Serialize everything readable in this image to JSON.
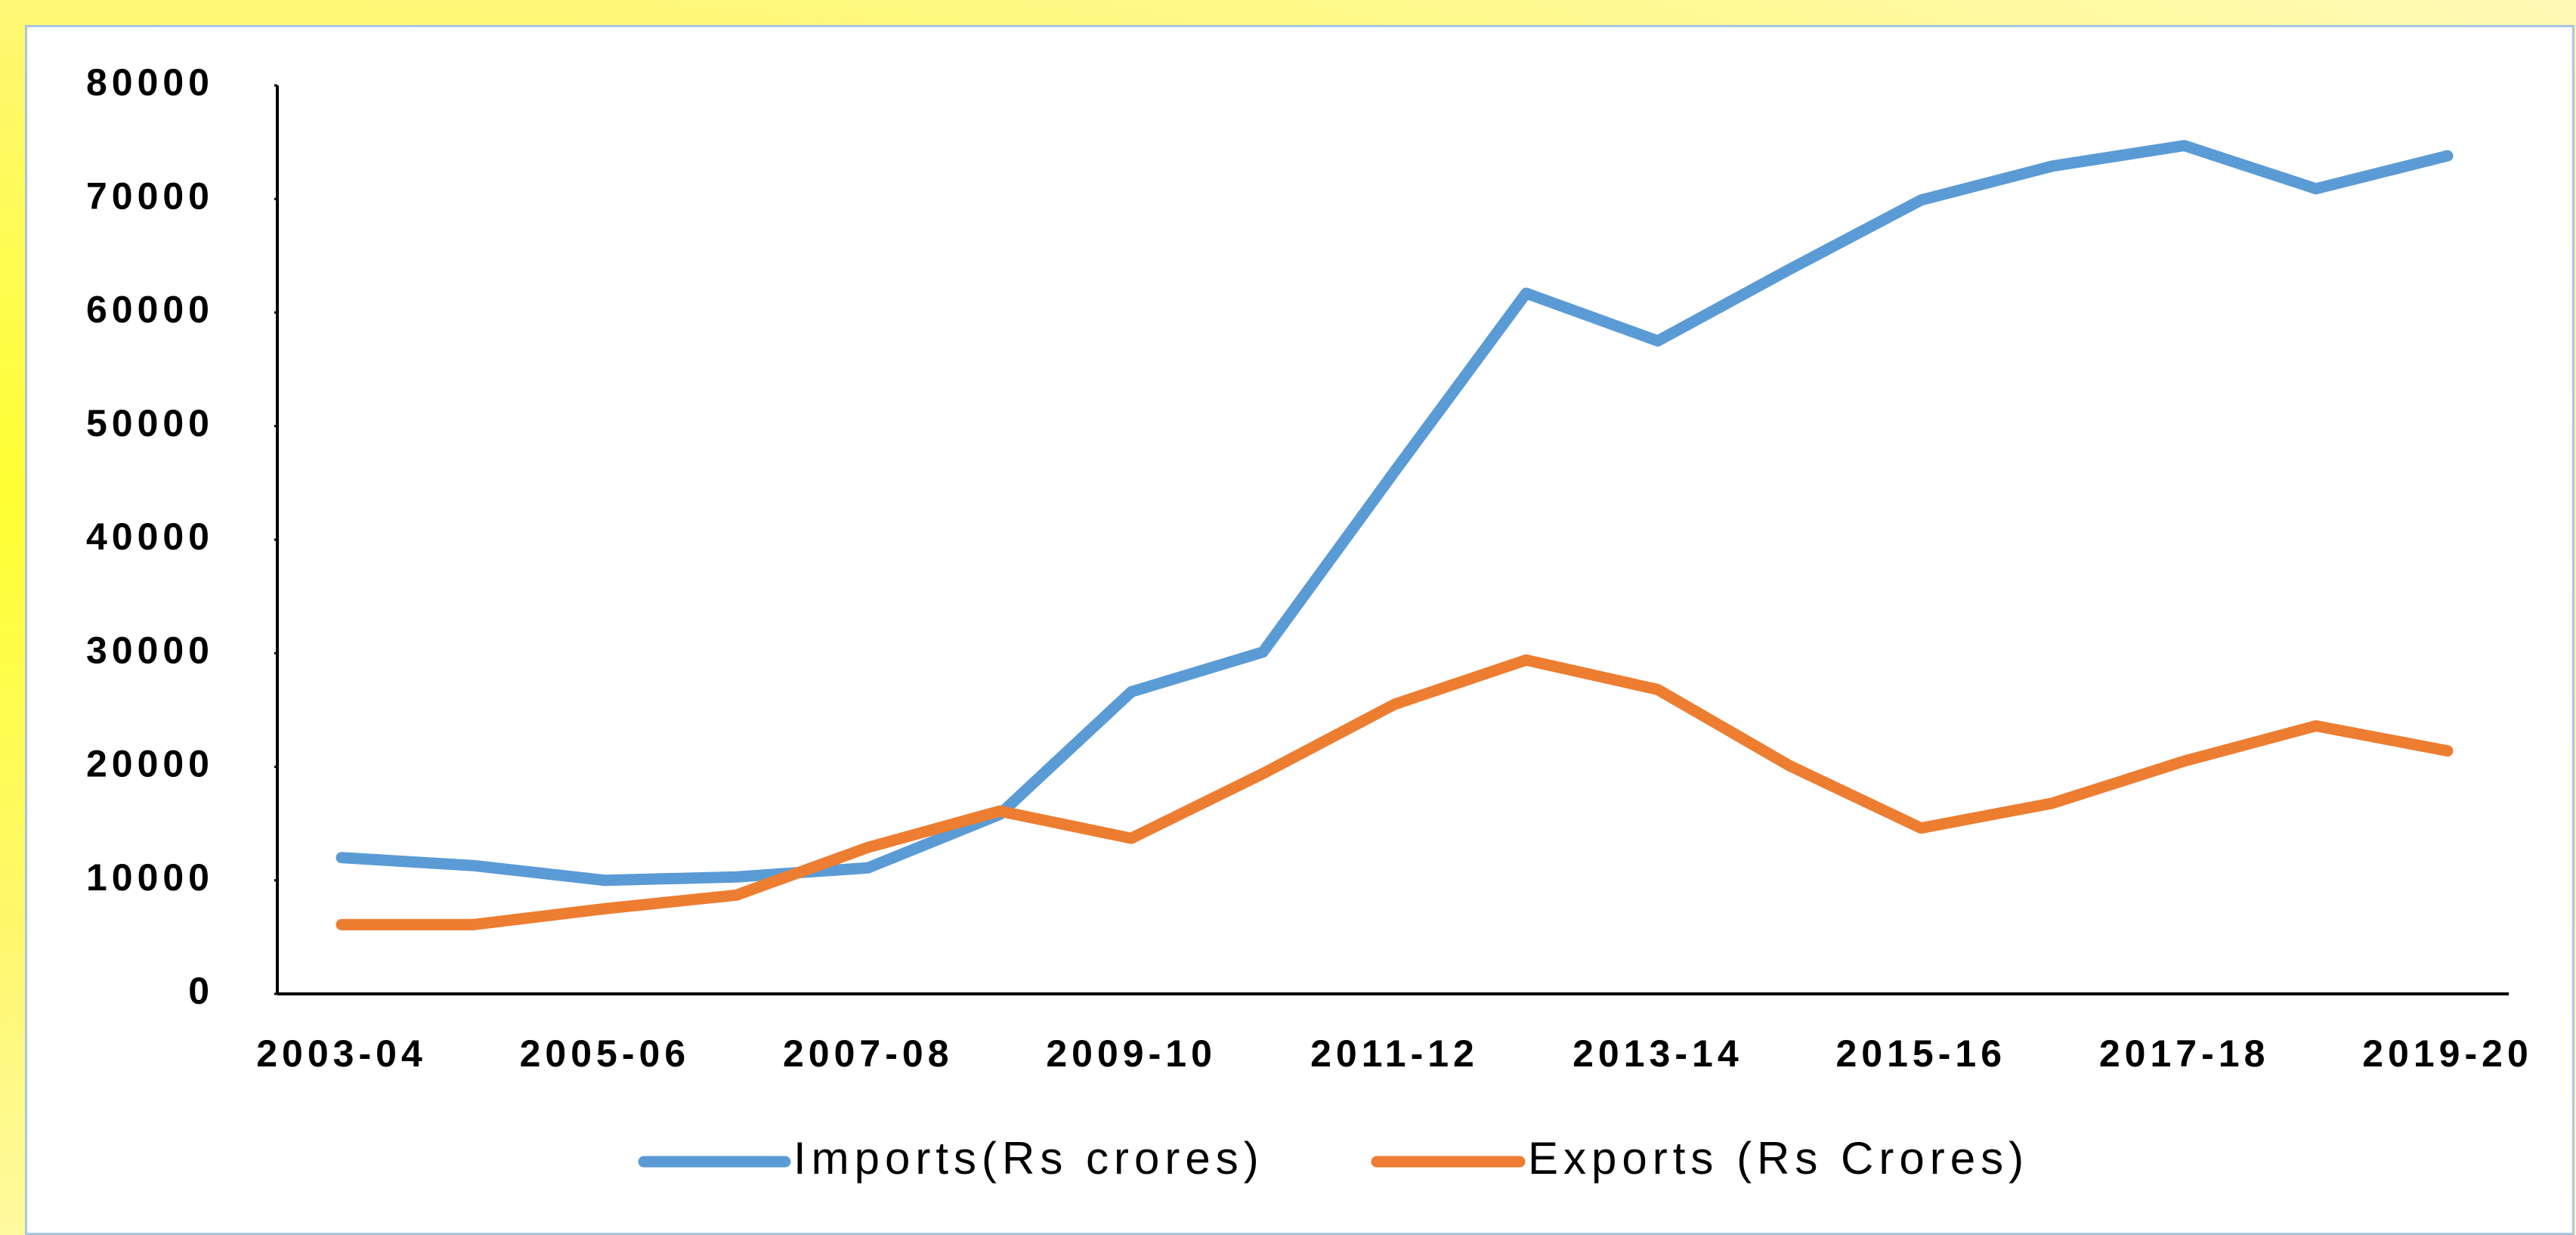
{
  "chart_data": {
    "type": "line",
    "categories": [
      "2003-04",
      null,
      "2005-06",
      null,
      "2007-08",
      null,
      "2009-10",
      null,
      "2011-12",
      null,
      "2013-14",
      null,
      "2015-16",
      null,
      "2017-18",
      null,
      "2019-20"
    ],
    "series": [
      {
        "name": "Imports(Rs crores)",
        "color": "#5b9bd5",
        "values": [
          12000,
          11300,
          10000,
          10300,
          11100,
          15800,
          26600,
          30100,
          46000,
          61700,
          57500,
          63800,
          69900,
          72900,
          74700,
          70900,
          73800
        ]
      },
      {
        "name": "Exports (Rs Crores)",
        "color": "#ed7d31",
        "values": [
          6100,
          6100,
          7500,
          8700,
          12900,
          16100,
          13700,
          19400,
          25500,
          29400,
          26800,
          20100,
          14600,
          16800,
          20500,
          23600,
          21400
        ]
      }
    ],
    "ylim": [
      0,
      80000
    ],
    "yticks": [
      0,
      10000,
      20000,
      30000,
      40000,
      50000,
      60000,
      70000,
      80000
    ],
    "grid": false,
    "legend": "bottom"
  }
}
